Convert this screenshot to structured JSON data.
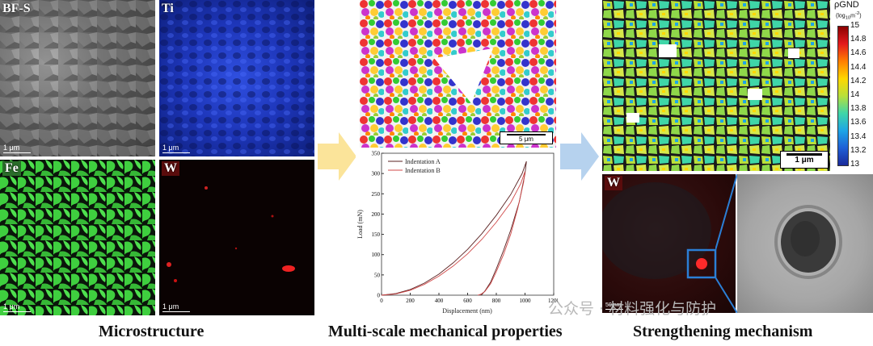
{
  "panels": {
    "bf_s": {
      "label": "BF-S",
      "scale": "1 μm"
    },
    "ti": {
      "label": "Ti",
      "scale": "1 μm"
    },
    "fe": {
      "label": "Fe",
      "scale": "1 μm"
    },
    "w_map": {
      "label": "W",
      "scale": "1 μm"
    },
    "ipf": {
      "scale": "5 μm"
    },
    "gnd": {
      "scale": "1 μm"
    },
    "w_tem": {
      "label": "W",
      "scale": "50 nm"
    }
  },
  "colorbar": {
    "title": "ρGND",
    "unit_prefix": "(log",
    "unit_sub": "10",
    "unit_suffix": "m",
    "unit_sup": "-2",
    "unit_close": ")",
    "ticks": [
      "15",
      "14.8",
      "14.6",
      "14.4",
      "14.2",
      "14",
      "13.8",
      "13.6",
      "13.4",
      "13.2",
      "13"
    ],
    "colors": [
      "#8b0000",
      "#e41a1c",
      "#ff7f00",
      "#ffd700",
      "#b8e03a",
      "#3fd6a8",
      "#1ea5e6",
      "#1f5fd6",
      "#1a2a9a"
    ]
  },
  "chart_data": {
    "type": "line",
    "xlabel": "Displacement (nm)",
    "ylabel": "Load (mN)",
    "xlim": [
      0,
      1200
    ],
    "ylim": [
      0,
      350
    ],
    "xticks": [
      "0",
      "200",
      "400",
      "600",
      "800",
      "1000",
      "1200"
    ],
    "yticks": [
      "0",
      "50",
      "100",
      "150",
      "200",
      "250",
      "300",
      "350"
    ],
    "series": [
      {
        "name": "Indentation A",
        "color": "#5a2222",
        "x": [
          0,
          100,
          200,
          300,
          400,
          500,
          600,
          700,
          800,
          900,
          980,
          1010,
          1000,
          960,
          900,
          850,
          800,
          760,
          720,
          700,
          690
        ],
        "y": [
          0,
          4,
          14,
          30,
          52,
          80,
          113,
          152,
          197,
          248,
          300,
          330,
          300,
          230,
          160,
          110,
          65,
          32,
          10,
          2,
          0
        ]
      },
      {
        "name": "Indentation B",
        "color": "#d04848",
        "x": [
          0,
          100,
          200,
          300,
          400,
          500,
          600,
          700,
          800,
          900,
          970,
          1000,
          990,
          950,
          900,
          850,
          800,
          760,
          720,
          690,
          670
        ],
        "y": [
          0,
          3,
          12,
          27,
          47,
          72,
          102,
          138,
          180,
          228,
          275,
          305,
          278,
          215,
          150,
          100,
          58,
          28,
          9,
          2,
          0
        ]
      }
    ]
  },
  "titles": {
    "microstructure": "Microstructure",
    "mechanical": "Multi-scale mechanical properties",
    "strengthening": "Strengthening mechanism"
  },
  "watermark": "公众号 · 材料强化与防护"
}
